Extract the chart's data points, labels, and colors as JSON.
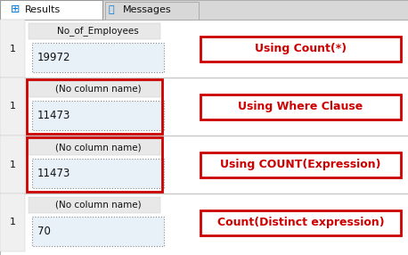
{
  "fig_w": 4.58,
  "fig_h": 2.86,
  "dpi": 100,
  "bg_color": "#e8e8e8",
  "white": "#ffffff",
  "content_bg": "#f5f5f5",
  "tab_active_bg": "#ffffff",
  "tab_inactive_bg": "#d8d8d8",
  "sep_color": "#c8c8c8",
  "cell_bg": "#e8f0f8",
  "red": "#cc0000",
  "dark_red": "#cc0000",
  "text_dark": "#111111",
  "dashed_color": "#888888",
  "tab_border": "#999999",
  "sections": [
    {
      "col_header": "No_of_Employees",
      "row_num": "1",
      "value": "19972",
      "label": "Using Count(*)",
      "has_red_border": false
    },
    {
      "col_header": "(No column name)",
      "row_num": "1",
      "value": "11473",
      "label": "Using Where Clause",
      "has_red_border": true
    },
    {
      "col_header": "(No column name)",
      "row_num": "1",
      "value": "11473",
      "label": "Using COUNT(Expression)",
      "has_red_border": true
    },
    {
      "col_header": "(No column name)",
      "row_num": "1",
      "value": "70",
      "label": "Count(Distinct expression)",
      "has_red_border": false
    }
  ]
}
